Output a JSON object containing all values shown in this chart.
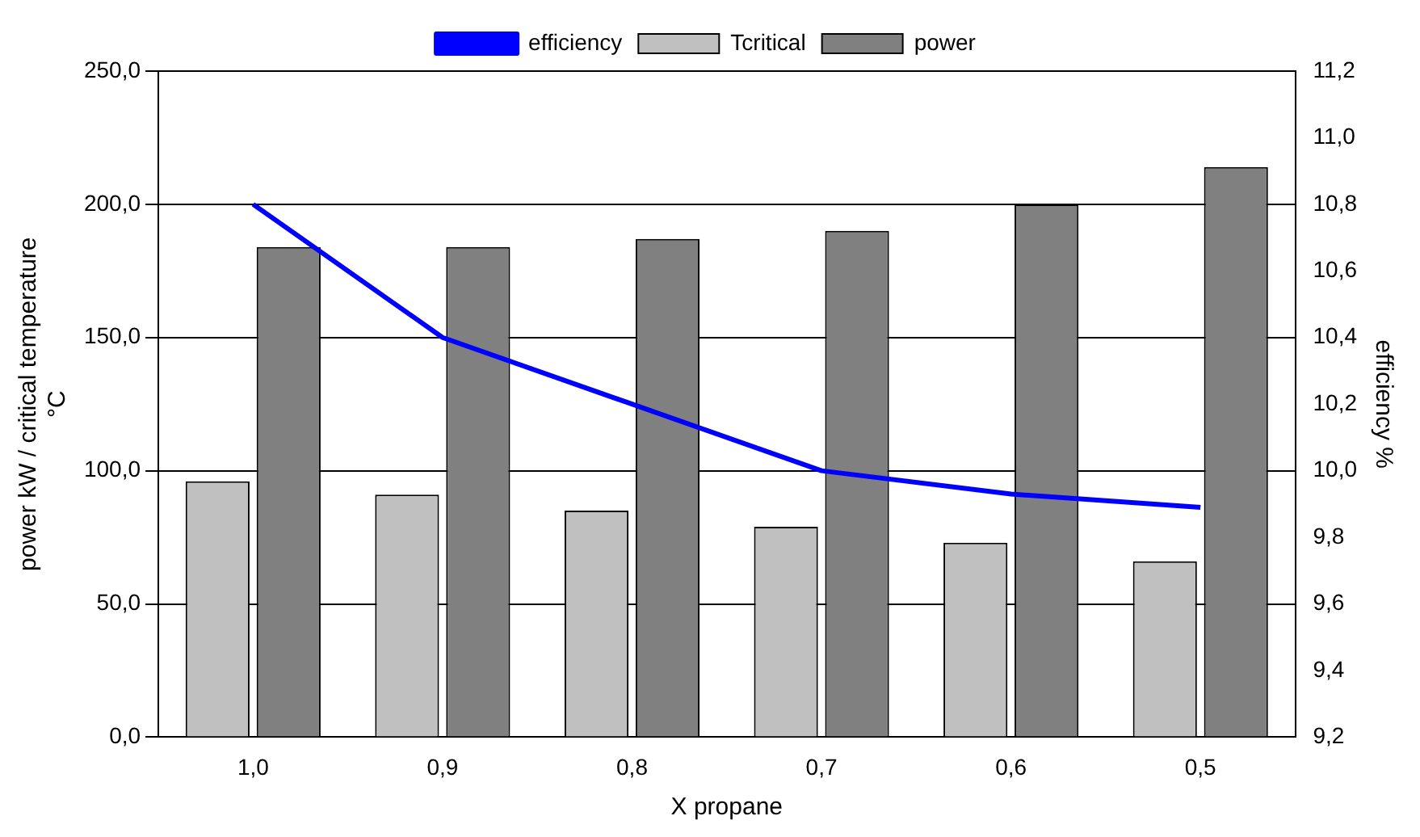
{
  "chart_data": {
    "type": "bar",
    "categories": [
      "1,0",
      "0,9",
      "0,8",
      "0,7",
      "0,6",
      "0,5"
    ],
    "series": [
      {
        "name": "Tcritical",
        "color": "#c0c0c0",
        "values": [
          96,
          91,
          85,
          79,
          73,
          66
        ]
      },
      {
        "name": "power",
        "color": "#808080",
        "values": [
          184,
          184,
          187,
          190,
          200,
          214
        ]
      },
      {
        "name": "efficiency",
        "type": "line",
        "axis": "y2",
        "color": "#0000ff",
        "values": [
          10.8,
          10.4,
          10.2,
          10.0,
          9.93,
          9.89
        ]
      }
    ],
    "xlabel": "X propane",
    "ylabel": "power kW / critical temperature °C",
    "y2label": "efficiency %",
    "ylim": [
      0,
      250
    ],
    "yticks": [
      {
        "value": 0,
        "label": "0,0"
      },
      {
        "value": 50,
        "label": "50,0"
      },
      {
        "value": 100,
        "label": "100,0"
      },
      {
        "value": 150,
        "label": "150,0"
      },
      {
        "value": 200,
        "label": "200,0"
      },
      {
        "value": 250,
        "label": "250,0"
      }
    ],
    "y2lim": [
      9.2,
      11.2
    ],
    "y2ticks": [
      {
        "value": 9.2,
        "label": "9,2"
      },
      {
        "value": 9.4,
        "label": "9,4"
      },
      {
        "value": 9.6,
        "label": "9,6"
      },
      {
        "value": 9.8,
        "label": "9,8"
      },
      {
        "value": 10,
        "label": "10,0"
      },
      {
        "value": 10.2,
        "label": "10,2"
      },
      {
        "value": 10.4,
        "label": "10,4"
      },
      {
        "value": 10.6,
        "label": "10,6"
      },
      {
        "value": 10.8,
        "label": "10,8"
      },
      {
        "value": 11,
        "label": "11,0"
      },
      {
        "value": 11.2,
        "label": "11,2"
      }
    ],
    "grid": "y",
    "legend": "top",
    "marker": "none",
    "line_style": "solid"
  }
}
